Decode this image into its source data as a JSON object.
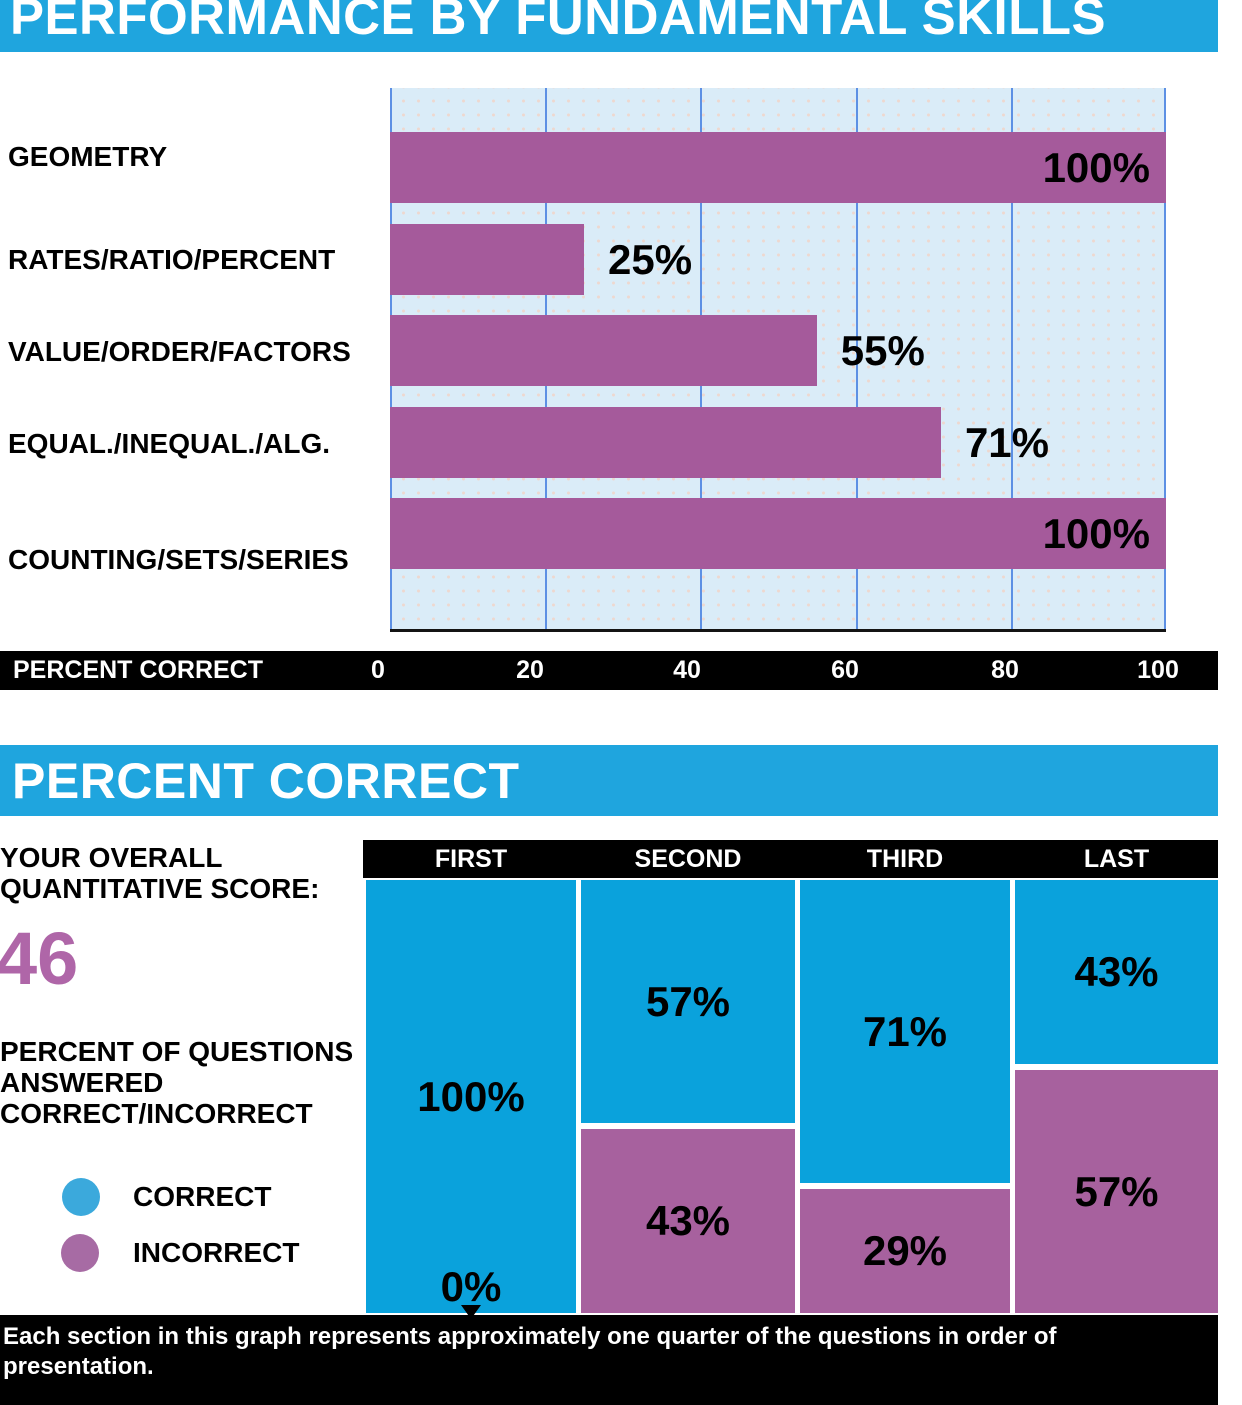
{
  "section1": {
    "title": "PERFORMANCE BY FUNDAMENTAL SKILLS",
    "axis_label": "PERCENT CORRECT",
    "tick_labels": [
      "0",
      "20",
      "40",
      "60",
      "80",
      "100"
    ]
  },
  "section2": {
    "title": "PERCENT CORRECT",
    "score_heading": "YOUR OVERALL\nQUANTITATIVE SCORE:",
    "score_value": "46",
    "description": "PERCENT OF QUESTIONS\nANSWERED\nCORRECT/INCORRECT",
    "legend": [
      {
        "label": "CORRECT",
        "color": "#3BA9DC"
      },
      {
        "label": "INCORRECT",
        "color": "#A76BA4"
      }
    ],
    "column_headers": [
      "FIRST",
      "SECOND",
      "THIRD",
      "LAST"
    ],
    "footnote": "Each section in this graph represents approximately one quarter of the questions in order of presentation."
  },
  "colors": {
    "header_blue": "#1FA5DE",
    "bar_purple": "#A55A9B",
    "stack_purple": "#A7619E",
    "stack_blue": "#0AA2DC",
    "plot_background": "#DAECF8",
    "gridline_blue": "#5D90E4",
    "axis_bar": "#000000",
    "score_purple": "#AF66A8"
  },
  "chart_data": [
    {
      "type": "bar",
      "orientation": "horizontal",
      "title": "PERFORMANCE BY FUNDAMENTAL SKILLS",
      "categories": [
        "GEOMETRY",
        "RATES/RATIO/PERCENT",
        "VALUE/ORDER/FACTORS",
        "EQUAL./INEQUAL./ALG.",
        "COUNTING/SETS/SERIES"
      ],
      "values": [
        100,
        25,
        55,
        71,
        100
      ],
      "value_labels": [
        "100%",
        "25%",
        "55%",
        "71%",
        "100%"
      ],
      "xlabel": "PERCENT CORRECT",
      "xlim": [
        0,
        100
      ],
      "xticks": [
        0,
        20,
        40,
        60,
        80,
        100
      ],
      "grid": true,
      "bar_color": "#A55A9B"
    },
    {
      "type": "bar",
      "subtype": "stacked-column",
      "title": "PERCENT CORRECT",
      "categories": [
        "FIRST",
        "SECOND",
        "THIRD",
        "LAST"
      ],
      "series": [
        {
          "name": "CORRECT",
          "color": "#0AA2DC",
          "values": [
            100,
            57,
            71,
            43
          ]
        },
        {
          "name": "INCORRECT",
          "color": "#A7619E",
          "values": [
            0,
            43,
            29,
            57
          ]
        }
      ],
      "value_label_format": "percent",
      "ylim": [
        0,
        100
      ],
      "legend_position": "left",
      "footnote": "Each section in this graph represents approximately one quarter of the questions in order of presentation."
    }
  ]
}
